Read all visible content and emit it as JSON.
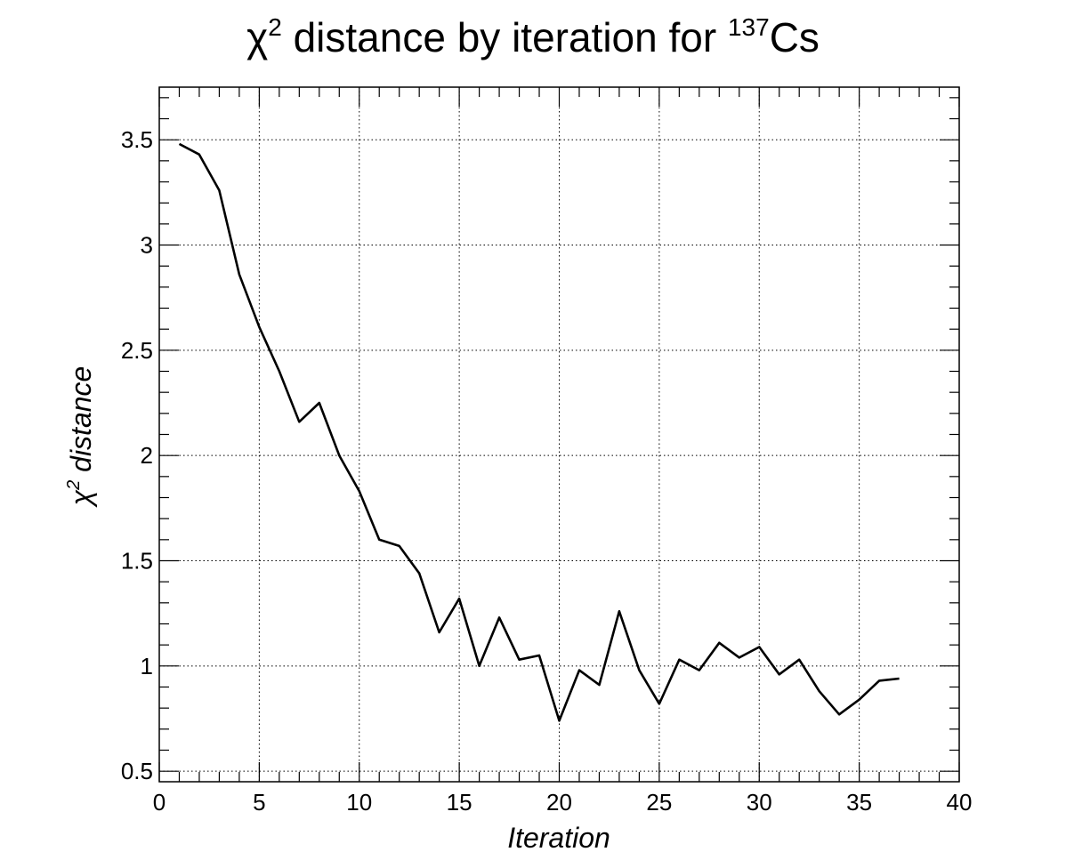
{
  "chart_data": {
    "type": "line",
    "title": {
      "prefix": "χ",
      "prefix_sup": "2",
      "middle": " distance by iteration for ",
      "isotope_sup": "137",
      "isotope": "Cs"
    },
    "xlabel": "Iteration",
    "ylabel": {
      "symbol": "χ",
      "sup": "2",
      "rest": " distance"
    },
    "xlim": [
      0,
      40
    ],
    "ylim": [
      0.45,
      3.75
    ],
    "x_ticks": [
      0,
      5,
      10,
      15,
      20,
      25,
      30,
      35,
      40
    ],
    "x_tick_labels": [
      "0",
      "5",
      "10",
      "15",
      "20",
      "25",
      "30",
      "35",
      "40"
    ],
    "y_ticks": [
      0.5,
      1,
      1.5,
      2,
      2.5,
      3,
      3.5
    ],
    "y_tick_labels": [
      "0.5",
      "1",
      "1.5",
      "2",
      "2.5",
      "3",
      "3.5"
    ],
    "grid": true,
    "series": [
      {
        "x": [
          1,
          2,
          3,
          4,
          5,
          6,
          7,
          8,
          9,
          10,
          11,
          12,
          13,
          14,
          15,
          16,
          17,
          18,
          19,
          20,
          21,
          22,
          23,
          24,
          25,
          26,
          27,
          28,
          29,
          30,
          31,
          32,
          33,
          34,
          35,
          36,
          37
        ],
        "values": [
          3.48,
          3.43,
          3.26,
          2.86,
          2.61,
          2.4,
          2.16,
          2.25,
          2.0,
          1.83,
          1.6,
          1.57,
          1.44,
          1.16,
          1.32,
          1.0,
          1.23,
          1.03,
          1.05,
          0.74,
          0.98,
          0.91,
          1.26,
          0.98,
          0.82,
          1.03,
          0.98,
          1.11,
          1.04,
          1.09,
          0.96,
          1.03,
          0.88,
          0.77,
          0.84,
          0.93,
          0.94
        ]
      }
    ]
  }
}
